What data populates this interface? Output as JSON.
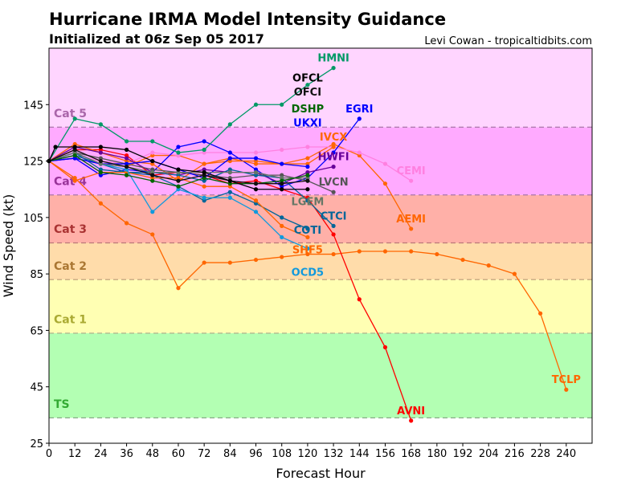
{
  "chart_data": {
    "type": "line",
    "title": "Hurricane IRMA Model Intensity Guidance",
    "subtitle": "Initialized at 06z Sep 05 2017",
    "credit": "Levi Cowan - tropicaltidbits.com",
    "xlabel": "Forecast Hour",
    "ylabel": "Wind Speed (kt)",
    "xlim": [
      0,
      252
    ],
    "ylim": [
      25,
      165
    ],
    "xticks": [
      0,
      12,
      24,
      36,
      48,
      60,
      72,
      84,
      96,
      108,
      120,
      132,
      144,
      156,
      168,
      180,
      192,
      204,
      216,
      228,
      240
    ],
    "yticks": [
      25,
      45,
      65,
      85,
      105,
      125,
      145
    ],
    "grid": false,
    "bands": [
      {
        "label": "TS",
        "min": 34,
        "max": 64,
        "fill": "#b3ffb3",
        "text_color": "#33aa33",
        "line": "#88aa88"
      },
      {
        "label": "Cat 1",
        "min": 64,
        "max": 83,
        "fill": "#ffffb3",
        "text_color": "#aaaa33",
        "line": "#aaaa88"
      },
      {
        "label": "Cat 2",
        "min": 83,
        "max": 96,
        "fill": "#ffdcaa",
        "text_color": "#aa7733",
        "line": "#bb9977"
      },
      {
        "label": "Cat 3",
        "min": 96,
        "max": 113,
        "fill": "#ffb0a8",
        "text_color": "#aa3333",
        "line": "#bb7777"
      },
      {
        "label": "Cat 4",
        "min": 113,
        "max": 137,
        "fill": "#ffaaff",
        "text_color": "#993399",
        "line": "#aa77aa"
      },
      {
        "label": "Cat 5",
        "min": 137,
        "max": 165,
        "fill": "#ffd5ff",
        "text_color": "#aa66aa",
        "line": "#aa77aa"
      }
    ],
    "series": [
      {
        "name": "TCLP",
        "color": "#ff6600",
        "start": 0,
        "values": [
          125,
          119,
          110,
          103,
          99,
          80,
          89,
          89,
          90,
          91,
          92,
          92,
          93,
          93,
          93,
          92,
          90,
          88,
          85,
          71,
          44
        ]
      },
      {
        "name": "AVNI",
        "color": "#ff0000",
        "start": 0,
        "values": [
          125,
          129,
          129,
          127,
          120,
          121,
          120,
          117,
          118,
          115,
          112,
          99,
          76,
          59,
          33
        ]
      },
      {
        "name": "AEMI",
        "color": "#ff6600",
        "start": 0,
        "values": [
          125,
          126,
          124,
          123,
          127,
          127,
          124,
          126,
          124,
          124,
          126,
          131,
          127,
          117,
          101
        ]
      },
      {
        "name": "CEMI",
        "color": "#ff80e0",
        "start": 0,
        "values": [
          125,
          127,
          125,
          124,
          128,
          127,
          128,
          128,
          128,
          129,
          130,
          130,
          128,
          124,
          118
        ]
      },
      {
        "name": "EGRI",
        "color": "#0000ff",
        "start": 0,
        "values": [
          125,
          126,
          120,
          122,
          121,
          130,
          132,
          128,
          122,
          116,
          119,
          128,
          140
        ]
      },
      {
        "name": "HMNI",
        "color": "#009966",
        "start": 0,
        "values": [
          125,
          140,
          138,
          132,
          132,
          128,
          129,
          138,
          145,
          145,
          152,
          158
        ]
      },
      {
        "name": "IVCX",
        "color": "#ff6600",
        "start": 0,
        "values": [
          125,
          131,
          128,
          125,
          124,
          118,
          124,
          125,
          125,
          124,
          124,
          130
        ]
      },
      {
        "name": "HWFI",
        "color": "#660099",
        "start": 0,
        "values": [
          125,
          130,
          128,
          126,
          121,
          120,
          122,
          121,
          121,
          117,
          121,
          123
        ]
      },
      {
        "name": "LVCN",
        "color": "#555555",
        "start": 0,
        "values": [
          125,
          128,
          126,
          124,
          122,
          121,
          120,
          119,
          120,
          120,
          118,
          114
        ]
      },
      {
        "name": "CTCI",
        "color": "#006699",
        "start": 0,
        "values": [
          125,
          128,
          122,
          121,
          121,
          120,
          118,
          122,
          120,
          119,
          111,
          102
        ]
      },
      {
        "name": "COTI",
        "color": "#006699",
        "start": 0,
        "values": [
          125,
          127,
          124,
          121,
          120,
          116,
          111,
          114,
          110,
          105,
          101
        ]
      },
      {
        "name": "SHF5",
        "color": "#ff6600",
        "start": 0,
        "values": [
          125,
          118,
          121,
          121,
          119,
          119,
          116,
          116,
          111,
          102,
          98
        ]
      },
      {
        "name": "OCD5",
        "color": "#1199dd",
        "start": 0,
        "values": [
          125,
          128,
          124,
          122,
          107,
          115,
          112,
          112,
          107,
          98,
          94
        ]
      },
      {
        "name": "UKXI",
        "color": "#0000ff",
        "start": 0,
        "values": [
          125,
          126,
          124,
          124,
          125,
          122,
          119,
          126,
          126,
          124,
          123
        ]
      },
      {
        "name": "LGEM",
        "color": "#667766",
        "start": 0,
        "values": [
          125,
          128,
          124,
          123,
          121,
          121,
          121,
          121,
          121,
          119,
          119
        ]
      },
      {
        "name": "DSHP",
        "color": "#006600",
        "start": 0,
        "values": [
          125,
          127,
          121,
          120,
          118,
          116,
          119,
          117,
          117,
          118,
          120
        ]
      },
      {
        "name": "OFCI",
        "color": "#111111",
        "start": 0,
        "values": [
          125,
          129,
          125,
          123,
          120,
          118,
          120,
          118,
          117,
          117,
          118
        ]
      },
      {
        "name": "OFCL",
        "color": "#000000",
        "x": [
          0,
          3,
          12,
          24,
          36,
          48,
          60,
          72,
          84,
          96,
          108,
          120
        ],
        "values": [
          125,
          130,
          130,
          130,
          129,
          125,
          122,
          121,
          118,
          115,
          115,
          115
        ]
      }
    ]
  }
}
